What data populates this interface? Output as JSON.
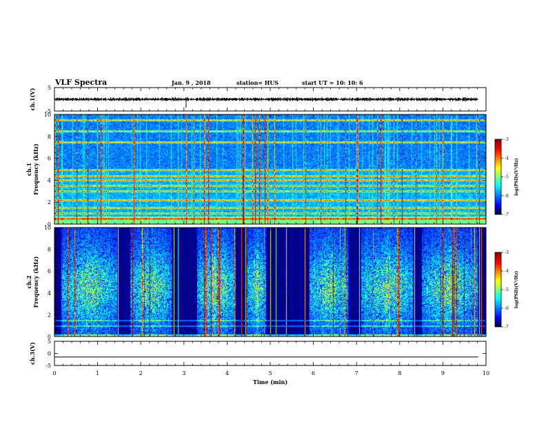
{
  "header": {
    "title": "VLF Spectra",
    "date": "Jan. 9 , 2018",
    "station": "station= HUS",
    "start": "start UT =  10: 10: 6"
  },
  "chart_data": [
    {
      "type": "line",
      "name": "ch1-waveform",
      "ylabel": "ch.1(V)",
      "ylim": [
        -5,
        5
      ],
      "yticks": [
        "5",
        "-5"
      ],
      "xlim": [
        0,
        10
      ],
      "level": 0,
      "notes": "dense noisy trace around 0 V with small spikes"
    },
    {
      "type": "heatmap",
      "name": "ch1-spectrogram",
      "ylabel": "ch.1\nFrequency (kHz)",
      "ylim": [
        0,
        10
      ],
      "yticks": [
        "0",
        "2",
        "4",
        "6",
        "8",
        "10"
      ],
      "xlim": [
        0,
        10
      ],
      "bands_khz": [
        0.5,
        1.0,
        1.5,
        2.2,
        3.0,
        3.5,
        4.0,
        4.4,
        5.0,
        7.5,
        8.5,
        9.5
      ],
      "colorbar": {
        "label": "log(PSD)(V²/Hz)",
        "ticks": [
          "-3",
          "-4",
          "-5",
          "-6",
          "-7"
        ],
        "range": [
          -7,
          -3
        ]
      }
    },
    {
      "type": "heatmap",
      "name": "ch2-spectrogram",
      "ylabel": "ch.2\nFrequency (kHz)",
      "ylim": [
        0,
        10
      ],
      "yticks": [
        "0",
        "2",
        "4",
        "6",
        "8",
        "10"
      ],
      "xlim": [
        0,
        10
      ],
      "active_intervals_min": [
        [
          0.15,
          1.45
        ],
        [
          1.75,
          2.7
        ],
        [
          3.3,
          4.2
        ],
        [
          4.45,
          4.9
        ],
        [
          5.9,
          6.8
        ],
        [
          7.1,
          8.3
        ],
        [
          8.5,
          9.8
        ]
      ],
      "colorbar": {
        "label": "log(PSD)(V²/Hz)",
        "ticks": [
          "-3",
          "-4",
          "-5",
          "-6",
          "-7"
        ],
        "range": [
          -7,
          -3
        ]
      }
    },
    {
      "type": "line",
      "name": "ch3-waveform",
      "ylabel": "ch.3(V)",
      "ylim": [
        -5,
        5
      ],
      "yticks": [
        "5",
        "0",
        "-5"
      ],
      "xlim": [
        0,
        10
      ],
      "level": -1.5,
      "xlabel": "Time (min)",
      "xticks": [
        "0",
        "1",
        "2",
        "3",
        "4",
        "5",
        "6",
        "7",
        "8",
        "9",
        "10"
      ]
    }
  ],
  "colors": {
    "background": "#ffffff",
    "frame": "#000000",
    "spec_dark": "#000044",
    "spec_blue": "#0a30ff",
    "spec_cyan": "#00e0ff",
    "spec_green": "#40ff60"
  }
}
